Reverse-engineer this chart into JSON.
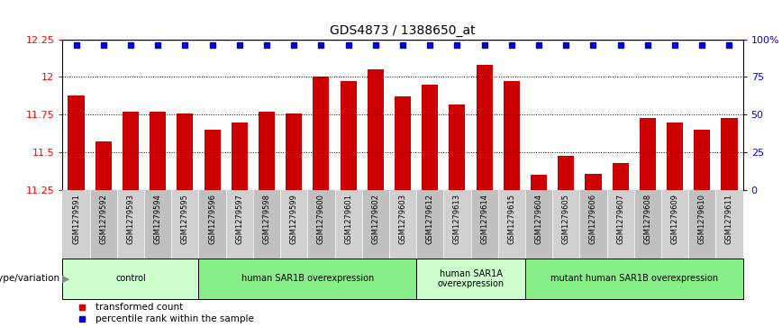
{
  "title": "GDS4873 / 1388650_at",
  "categories": [
    "GSM1279591",
    "GSM1279592",
    "GSM1279593",
    "GSM1279594",
    "GSM1279595",
    "GSM1279596",
    "GSM1279597",
    "GSM1279598",
    "GSM1279599",
    "GSM1279600",
    "GSM1279601",
    "GSM1279602",
    "GSM1279603",
    "GSM1279612",
    "GSM1279613",
    "GSM1279614",
    "GSM1279615",
    "GSM1279604",
    "GSM1279605",
    "GSM1279606",
    "GSM1279607",
    "GSM1279608",
    "GSM1279609",
    "GSM1279610",
    "GSM1279611"
  ],
  "bar_values": [
    11.88,
    11.57,
    11.77,
    11.77,
    11.76,
    11.65,
    11.7,
    11.77,
    11.76,
    12.0,
    11.97,
    12.05,
    11.87,
    11.95,
    11.82,
    12.08,
    11.97,
    11.35,
    11.48,
    11.36,
    11.43,
    11.73,
    11.7,
    11.65,
    11.73
  ],
  "bar_color": "#cc0000",
  "percentile_color": "#0000cc",
  "ylim_low": 11.25,
  "ylim_high": 12.25,
  "yticks": [
    11.25,
    11.5,
    11.75,
    12.0,
    12.25
  ],
  "ytick_labels": [
    "11.25",
    "11.5",
    "11.75",
    "12",
    "12.25"
  ],
  "right_ytick_labels": [
    "0",
    "25",
    "50",
    "75",
    "100%"
  ],
  "groups": [
    {
      "label": "control",
      "start": 0,
      "end": 4,
      "color": "#ccffcc"
    },
    {
      "label": "human SAR1B overexpression",
      "start": 5,
      "end": 12,
      "color": "#88ee88"
    },
    {
      "label": "human SAR1A\noverexpression",
      "start": 13,
      "end": 16,
      "color": "#ccffcc"
    },
    {
      "label": "mutant human SAR1B overexpression",
      "start": 17,
      "end": 24,
      "color": "#88ee88"
    }
  ],
  "genotype_label": "genotype/variation",
  "legend_bar_label": "transformed count",
  "legend_dot_label": "percentile rank within the sample",
  "xtick_bg_even": "#d0d0d0",
  "xtick_bg_odd": "#c0c0c0"
}
